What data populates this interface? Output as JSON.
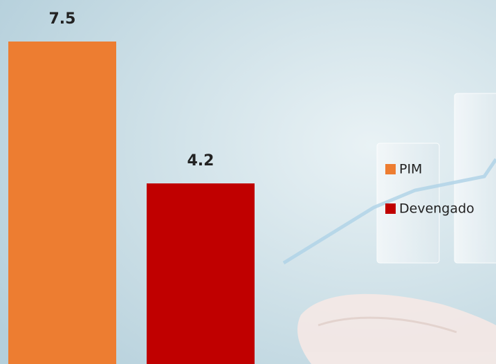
{
  "chart_data": {
    "type": "bar",
    "categories": [
      null
    ],
    "series": [
      {
        "name": "PIM",
        "color": "#ed7d31",
        "values": [
          7.5
        ]
      },
      {
        "name": "Devengado",
        "color": "#c00000",
        "values": [
          4.2
        ]
      }
    ],
    "legend": "right"
  }
}
